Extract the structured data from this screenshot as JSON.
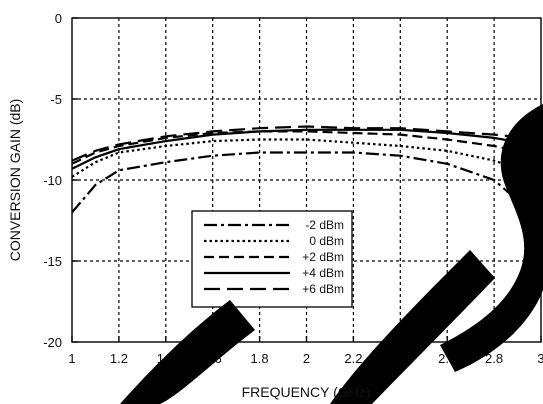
{
  "chart_data": {
    "type": "line",
    "title": "",
    "xlabel": "FREQUENCY (GHz)",
    "ylabel": "CONVERSION GAIN (dB)",
    "xlim": [
      1,
      3
    ],
    "ylim": [
      -20,
      0
    ],
    "xticks": [
      "1",
      "1.2",
      "1.4",
      "1.6",
      "1.8",
      "2",
      "2.2",
      "2.4",
      "2.6",
      "2.8",
      "3"
    ],
    "yticks": [
      "0",
      "-5",
      "-10",
      "-15",
      "-20"
    ],
    "grid": true,
    "legend_position": "center-bottom",
    "series": [
      {
        "name": "-2 dBm",
        "style": "dash-dot",
        "color": "#000000",
        "x": [
          1.0,
          1.1,
          1.2,
          1.4,
          1.6,
          1.8,
          2.0,
          2.2,
          2.4,
          2.6,
          2.8,
          3.0
        ],
        "y": [
          -12.0,
          -10.3,
          -9.4,
          -8.9,
          -8.5,
          -8.3,
          -8.3,
          -8.3,
          -8.5,
          -9.0,
          -10.0,
          -12.5
        ]
      },
      {
        "name": "0 dBm",
        "style": "dotted",
        "color": "#000000",
        "x": [
          1.0,
          1.1,
          1.2,
          1.4,
          1.6,
          1.8,
          2.0,
          2.2,
          2.4,
          2.6,
          2.8,
          3.0
        ],
        "y": [
          -9.8,
          -8.9,
          -8.3,
          -7.9,
          -7.6,
          -7.5,
          -7.5,
          -7.7,
          -7.9,
          -8.2,
          -8.8,
          -9.8
        ]
      },
      {
        "name": "+2 dBm",
        "style": "dashed",
        "color": "#000000",
        "x": [
          1.0,
          1.1,
          1.2,
          1.4,
          1.6,
          1.8,
          2.0,
          2.2,
          2.4,
          2.6,
          2.8,
          3.0
        ],
        "y": [
          -9.0,
          -8.3,
          -7.9,
          -7.4,
          -7.1,
          -7.0,
          -7.0,
          -7.1,
          -7.2,
          -7.5,
          -7.9,
          -8.5
        ]
      },
      {
        "name": "+4 dBm",
        "style": "solid",
        "color": "#000000",
        "x": [
          1.0,
          1.1,
          1.2,
          1.4,
          1.6,
          1.8,
          2.0,
          2.2,
          2.4,
          2.6,
          2.8,
          3.0
        ],
        "y": [
          -9.3,
          -8.6,
          -8.1,
          -7.6,
          -7.2,
          -7.0,
          -6.9,
          -6.9,
          -6.9,
          -7.1,
          -7.4,
          -7.9
        ]
      },
      {
        "name": "+6 dBm",
        "style": "long-dash",
        "color": "#000000",
        "x": [
          1.0,
          1.1,
          1.2,
          1.4,
          1.6,
          1.8,
          2.0,
          2.2,
          2.4,
          2.6,
          2.8,
          3.0
        ],
        "y": [
          -8.8,
          -8.2,
          -7.8,
          -7.3,
          -7.0,
          -6.8,
          -6.7,
          -6.8,
          -6.8,
          -7.0,
          -7.2,
          -7.5
        ]
      }
    ]
  },
  "watermark": {
    "color": "#000000",
    "text": "BS"
  }
}
